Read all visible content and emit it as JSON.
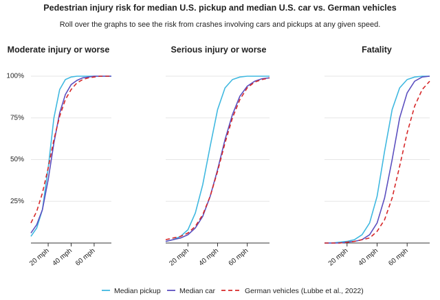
{
  "title": "Pedestrian injury risk for median U.S. pickup and median U.S. car vs. German vehicles",
  "subtitle": "Roll over the graphs to see the risk from crashes involving cars and pickups at any given speed.",
  "chart_data": [
    {
      "type": "line",
      "title": "Moderate injury or worse",
      "x": [
        5,
        10,
        15,
        20,
        25,
        30,
        35,
        40,
        45,
        50,
        55,
        60,
        65,
        70,
        75
      ],
      "xlim": [
        5,
        75
      ],
      "ylim": [
        0,
        100
      ],
      "xticks": [
        {
          "value": 20,
          "label": "20 mph"
        },
        {
          "value": 40,
          "label": "40 mph"
        },
        {
          "value": 60,
          "label": "60 mph"
        }
      ],
      "yticks": [
        {
          "value": 25,
          "label": "25%"
        },
        {
          "value": 50,
          "label": "50%"
        },
        {
          "value": 75,
          "label": "75%"
        },
        {
          "value": 100,
          "label": "100%"
        }
      ],
      "grid": true,
      "series": [
        {
          "name": "Median pickup",
          "color": "#3fb8e0",
          "dash": false,
          "values": [
            4,
            9,
            20,
            45,
            75,
            92,
            98,
            99.5,
            100,
            100,
            100,
            100,
            100,
            100,
            100
          ]
        },
        {
          "name": "Median car",
          "color": "#5b4fbf",
          "dash": false,
          "values": [
            6,
            11,
            20,
            38,
            60,
            78,
            89,
            95,
            97.5,
            99,
            99.5,
            100,
            100,
            100,
            100
          ]
        },
        {
          "name": "German vehicles (Lubbe et al., 2022)",
          "color": "#d62728",
          "dash": true,
          "values": [
            12,
            19,
            30,
            45,
            62,
            76,
            86,
            92,
            96,
            98,
            99,
            99.5,
            100,
            100,
            100
          ]
        }
      ]
    },
    {
      "type": "line",
      "title": "Serious injury or worse",
      "x": [
        5,
        10,
        15,
        20,
        25,
        30,
        35,
        40,
        45,
        50,
        55,
        60,
        65,
        70,
        75
      ],
      "xlim": [
        5,
        75
      ],
      "ylim": [
        0,
        100
      ],
      "xticks": [
        {
          "value": 20,
          "label": "20 mph"
        },
        {
          "value": 40,
          "label": "40 mph"
        },
        {
          "value": 60,
          "label": "60 mph"
        }
      ],
      "yticks": [
        25,
        50,
        75,
        100
      ],
      "grid": true,
      "series": [
        {
          "name": "Median pickup",
          "color": "#3fb8e0",
          "dash": false,
          "values": [
            1,
            2,
            4,
            8,
            18,
            35,
            58,
            80,
            93,
            98,
            99.5,
            100,
            100,
            100,
            100
          ]
        },
        {
          "name": "Median car",
          "color": "#5b4fbf",
          "dash": false,
          "values": [
            1,
            2,
            3,
            5,
            9,
            16,
            28,
            44,
            62,
            77,
            88,
            94,
            97,
            98.5,
            99
          ]
        },
        {
          "name": "German vehicles (Lubbe et al., 2022)",
          "color": "#d62728",
          "dash": true,
          "values": [
            2,
            3,
            4,
            6,
            10,
            17,
            28,
            43,
            60,
            75,
            86,
            93,
            96.5,
            98,
            99
          ]
        }
      ]
    },
    {
      "type": "line",
      "title": "Fatality",
      "x": [
        5,
        10,
        15,
        20,
        25,
        30,
        35,
        40,
        45,
        50,
        55,
        60,
        65,
        70,
        75
      ],
      "xlim": [
        5,
        75
      ],
      "ylim": [
        0,
        100
      ],
      "xticks": [
        {
          "value": 20,
          "label": "20 mph"
        },
        {
          "value": 40,
          "label": "40 mph"
        },
        {
          "value": 60,
          "label": "60 mph"
        }
      ],
      "yticks": [
        25,
        50,
        75,
        100
      ],
      "grid": true,
      "series": [
        {
          "name": "Median pickup",
          "color": "#3fb8e0",
          "dash": false,
          "values": [
            0,
            0,
            0.5,
            1,
            2,
            5,
            12,
            28,
            55,
            80,
            93,
            98,
            99.5,
            100,
            100
          ]
        },
        {
          "name": "Median car",
          "color": "#5b4fbf",
          "dash": false,
          "values": [
            0,
            0,
            0,
            0.5,
            1,
            2,
            5,
            12,
            27,
            50,
            75,
            90,
            97,
            99.5,
            100
          ]
        },
        {
          "name": "German vehicles (Lubbe et al., 2022)",
          "color": "#d62728",
          "dash": true,
          "values": [
            0,
            0,
            0,
            0.5,
            1,
            2,
            3,
            7,
            14,
            27,
            46,
            66,
            82,
            92,
            97
          ]
        }
      ]
    }
  ]
}
